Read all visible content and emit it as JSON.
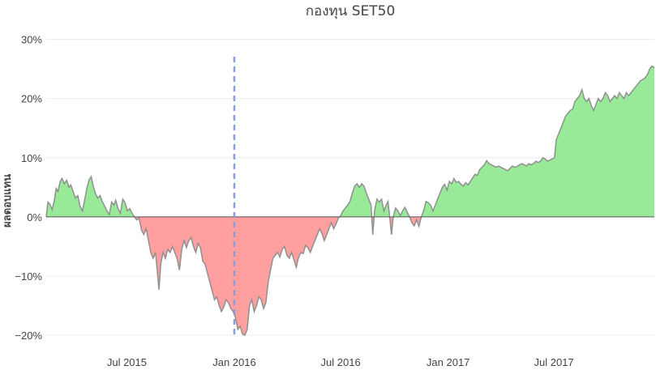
{
  "chart_data": {
    "type": "area",
    "title": "กองทุน SET50",
    "ylabel": "ผลตอบแทน",
    "xlabel": "",
    "x_range": [
      "2015-02-13",
      "2017-12-20"
    ],
    "ylim": [
      -0.215,
      0.305
    ],
    "y_ticks": [
      {
        "value": 0.3,
        "label": "30%"
      },
      {
        "value": 0.2,
        "label": "20%"
      },
      {
        "value": 0.1,
        "label": "10%"
      },
      {
        "value": 0.0,
        "label": "0%"
      },
      {
        "value": -0.1,
        "label": "−10%"
      },
      {
        "value": -0.2,
        "label": "−20%"
      }
    ],
    "x_ticks": [
      {
        "date": "2015-07-01",
        "label": "Jul 2015"
      },
      {
        "date": "2016-01-01",
        "label": "Jan 2016"
      },
      {
        "date": "2016-07-01",
        "label": "Jul 2016"
      },
      {
        "date": "2017-01-01",
        "label": "Jan 2017"
      },
      {
        "date": "2017-07-01",
        "label": "Jul 2017"
      }
    ],
    "marker_line": {
      "date": "2016-01-01",
      "color": "#8a9cd8"
    },
    "grid": true,
    "colors": {
      "positive": "#98ea98",
      "negative": "#ff9f9f",
      "line": "#909090",
      "zero": "#555555"
    },
    "series": [
      {
        "points": [
          [
            "2015-02-13",
            0.0
          ],
          [
            "2015-02-16",
            0.025
          ],
          [
            "2015-02-19",
            0.022
          ],
          [
            "2015-02-23",
            0.012
          ],
          [
            "2015-02-27",
            0.028
          ],
          [
            "2015-03-02",
            0.048
          ],
          [
            "2015-03-05",
            0.043
          ],
          [
            "2015-03-09",
            0.06
          ],
          [
            "2015-03-12",
            0.065
          ],
          [
            "2015-03-16",
            0.056
          ],
          [
            "2015-03-20",
            0.062
          ],
          [
            "2015-03-24",
            0.05
          ],
          [
            "2015-03-27",
            0.054
          ],
          [
            "2015-04-01",
            0.04
          ],
          [
            "2015-04-04",
            0.032
          ],
          [
            "2015-04-08",
            0.036
          ],
          [
            "2015-04-12",
            0.018
          ],
          [
            "2015-04-16",
            0.01
          ],
          [
            "2015-04-20",
            0.03
          ],
          [
            "2015-04-24",
            0.05
          ],
          [
            "2015-04-28",
            0.064
          ],
          [
            "2015-05-01",
            0.068
          ],
          [
            "2015-05-04",
            0.054
          ],
          [
            "2015-05-08",
            0.04
          ],
          [
            "2015-05-12",
            0.032
          ],
          [
            "2015-05-16",
            0.036
          ],
          [
            "2015-05-20",
            0.026
          ],
          [
            "2015-05-24",
            0.018
          ],
          [
            "2015-05-28",
            0.01
          ],
          [
            "2015-06-01",
            0.004
          ],
          [
            "2015-06-05",
            0.025
          ],
          [
            "2015-06-09",
            0.02
          ],
          [
            "2015-06-12",
            0.028
          ],
          [
            "2015-06-16",
            0.014
          ],
          [
            "2015-06-20",
            0.006
          ],
          [
            "2015-06-24",
            0.03
          ],
          [
            "2015-06-28",
            0.024
          ],
          [
            "2015-07-02",
            0.01
          ],
          [
            "2015-07-06",
            0.014
          ],
          [
            "2015-07-10",
            0.006
          ],
          [
            "2015-07-14",
            0.0
          ],
          [
            "2015-07-18",
            -0.005
          ],
          [
            "2015-07-22",
            -0.002
          ],
          [
            "2015-07-26",
            -0.022
          ],
          [
            "2015-07-30",
            -0.03
          ],
          [
            "2015-08-03",
            -0.02
          ],
          [
            "2015-08-07",
            -0.04
          ],
          [
            "2015-08-11",
            -0.06
          ],
          [
            "2015-08-15",
            -0.07
          ],
          [
            "2015-08-19",
            -0.06
          ],
          [
            "2015-08-22",
            -0.09
          ],
          [
            "2015-08-25",
            -0.123
          ],
          [
            "2015-08-28",
            -0.08
          ],
          [
            "2015-09-01",
            -0.06
          ],
          [
            "2015-09-05",
            -0.07
          ],
          [
            "2015-09-09",
            -0.055
          ],
          [
            "2015-09-13",
            -0.06
          ],
          [
            "2015-09-17",
            -0.05
          ],
          [
            "2015-09-21",
            -0.06
          ],
          [
            "2015-09-25",
            -0.07
          ],
          [
            "2015-09-29",
            -0.09
          ],
          [
            "2015-10-03",
            -0.055
          ],
          [
            "2015-10-07",
            -0.04
          ],
          [
            "2015-10-11",
            -0.052
          ],
          [
            "2015-10-15",
            -0.04
          ],
          [
            "2015-10-19",
            -0.035
          ],
          [
            "2015-10-23",
            -0.05
          ],
          [
            "2015-10-27",
            -0.06
          ],
          [
            "2015-10-31",
            -0.045
          ],
          [
            "2015-11-04",
            -0.052
          ],
          [
            "2015-11-08",
            -0.075
          ],
          [
            "2015-11-12",
            -0.08
          ],
          [
            "2015-11-16",
            -0.095
          ],
          [
            "2015-11-20",
            -0.11
          ],
          [
            "2015-11-24",
            -0.125
          ],
          [
            "2015-11-28",
            -0.14
          ],
          [
            "2015-12-02",
            -0.135
          ],
          [
            "2015-12-06",
            -0.15
          ],
          [
            "2015-12-10",
            -0.16
          ],
          [
            "2015-12-14",
            -0.152
          ],
          [
            "2015-12-18",
            -0.14
          ],
          [
            "2015-12-22",
            -0.145
          ],
          [
            "2015-12-26",
            -0.155
          ],
          [
            "2015-12-30",
            -0.16
          ],
          [
            "2016-01-03",
            -0.17
          ],
          [
            "2016-01-07",
            -0.19
          ],
          [
            "2016-01-11",
            -0.185
          ],
          [
            "2016-01-15",
            -0.198
          ],
          [
            "2016-01-19",
            -0.2
          ],
          [
            "2016-01-23",
            -0.19
          ],
          [
            "2016-01-27",
            -0.15
          ],
          [
            "2016-01-31",
            -0.14
          ],
          [
            "2016-02-04",
            -0.16
          ],
          [
            "2016-02-08",
            -0.15
          ],
          [
            "2016-02-12",
            -0.135
          ],
          [
            "2016-02-16",
            -0.14
          ],
          [
            "2016-02-20",
            -0.155
          ],
          [
            "2016-02-24",
            -0.145
          ],
          [
            "2016-02-28",
            -0.11
          ],
          [
            "2016-03-03",
            -0.09
          ],
          [
            "2016-03-07",
            -0.07
          ],
          [
            "2016-03-11",
            -0.065
          ],
          [
            "2016-03-15",
            -0.06
          ],
          [
            "2016-03-19",
            -0.068
          ],
          [
            "2016-03-23",
            -0.055
          ],
          [
            "2016-03-27",
            -0.05
          ],
          [
            "2016-03-31",
            -0.065
          ],
          [
            "2016-04-04",
            -0.07
          ],
          [
            "2016-04-08",
            -0.06
          ],
          [
            "2016-04-12",
            -0.072
          ],
          [
            "2016-04-16",
            -0.085
          ],
          [
            "2016-04-20",
            -0.068
          ],
          [
            "2016-04-24",
            -0.06
          ],
          [
            "2016-04-28",
            -0.062
          ],
          [
            "2016-05-02",
            -0.048
          ],
          [
            "2016-05-06",
            -0.052
          ],
          [
            "2016-05-10",
            -0.06
          ],
          [
            "2016-05-14",
            -0.05
          ],
          [
            "2016-05-18",
            -0.04
          ],
          [
            "2016-05-22",
            -0.03
          ],
          [
            "2016-05-26",
            -0.02
          ],
          [
            "2016-05-30",
            -0.028
          ],
          [
            "2016-06-03",
            -0.04
          ],
          [
            "2016-06-07",
            -0.03
          ],
          [
            "2016-06-11",
            -0.02
          ],
          [
            "2016-06-15",
            -0.01
          ],
          [
            "2016-06-19",
            -0.02
          ],
          [
            "2016-06-23",
            -0.012
          ],
          [
            "2016-06-27",
            -0.002
          ],
          [
            "2016-07-01",
            0.002
          ],
          [
            "2016-07-05",
            0.01
          ],
          [
            "2016-07-09",
            0.015
          ],
          [
            "2016-07-13",
            0.02
          ],
          [
            "2016-07-17",
            0.026
          ],
          [
            "2016-07-21",
            0.04
          ],
          [
            "2016-07-25",
            0.052
          ],
          [
            "2016-07-29",
            0.056
          ],
          [
            "2016-08-02",
            0.05
          ],
          [
            "2016-08-06",
            0.056
          ],
          [
            "2016-08-10",
            0.052
          ],
          [
            "2016-08-14",
            0.04
          ],
          [
            "2016-08-18",
            0.03
          ],
          [
            "2016-08-22",
            0.02
          ],
          [
            "2016-08-25",
            -0.03
          ],
          [
            "2016-08-28",
            0.01
          ],
          [
            "2016-09-01",
            0.03
          ],
          [
            "2016-09-05",
            0.025
          ],
          [
            "2016-09-09",
            0.03
          ],
          [
            "2016-09-13",
            0.01
          ],
          [
            "2016-09-17",
            0.02
          ],
          [
            "2016-09-20",
            0.026
          ],
          [
            "2016-09-23",
            0.0
          ],
          [
            "2016-09-26",
            -0.03
          ],
          [
            "2016-09-29",
            0.0
          ],
          [
            "2016-10-03",
            0.015
          ],
          [
            "2016-10-07",
            0.01
          ],
          [
            "2016-10-11",
            0.002
          ],
          [
            "2016-10-15",
            0.01
          ],
          [
            "2016-10-19",
            0.016
          ],
          [
            "2016-10-23",
            0.008
          ],
          [
            "2016-10-27",
            0.0
          ],
          [
            "2016-10-31",
            -0.01
          ],
          [
            "2016-11-04",
            -0.015
          ],
          [
            "2016-11-08",
            -0.005
          ],
          [
            "2016-11-12",
            -0.016
          ],
          [
            "2016-11-16",
            0.0
          ],
          [
            "2016-11-20",
            0.01
          ],
          [
            "2016-11-24",
            0.026
          ],
          [
            "2016-11-28",
            0.024
          ],
          [
            "2016-12-02",
            0.02
          ],
          [
            "2016-12-06",
            0.01
          ],
          [
            "2016-12-10",
            0.02
          ],
          [
            "2016-12-14",
            0.03
          ],
          [
            "2016-12-18",
            0.04
          ],
          [
            "2016-12-22",
            0.05
          ],
          [
            "2016-12-26",
            0.055
          ],
          [
            "2016-12-30",
            0.045
          ],
          [
            "2017-01-03",
            0.06
          ],
          [
            "2017-01-07",
            0.056
          ],
          [
            "2017-01-11",
            0.065
          ],
          [
            "2017-01-15",
            0.058
          ],
          [
            "2017-01-19",
            0.06
          ],
          [
            "2017-01-23",
            0.055
          ],
          [
            "2017-01-27",
            0.052
          ],
          [
            "2017-01-31",
            0.058
          ],
          [
            "2017-02-04",
            0.054
          ],
          [
            "2017-02-08",
            0.06
          ],
          [
            "2017-02-12",
            0.066
          ],
          [
            "2017-02-16",
            0.072
          ],
          [
            "2017-02-20",
            0.07
          ],
          [
            "2017-02-24",
            0.08
          ],
          [
            "2017-02-28",
            0.084
          ],
          [
            "2017-03-04",
            0.088
          ],
          [
            "2017-03-08",
            0.095
          ],
          [
            "2017-03-12",
            0.09
          ],
          [
            "2017-03-16",
            0.088
          ],
          [
            "2017-03-20",
            0.086
          ],
          [
            "2017-03-24",
            0.084
          ],
          [
            "2017-03-28",
            0.086
          ],
          [
            "2017-04-01",
            0.084
          ],
          [
            "2017-04-05",
            0.082
          ],
          [
            "2017-04-09",
            0.08
          ],
          [
            "2017-04-13",
            0.078
          ],
          [
            "2017-04-17",
            0.082
          ],
          [
            "2017-04-21",
            0.086
          ],
          [
            "2017-04-25",
            0.084
          ],
          [
            "2017-04-29",
            0.085
          ],
          [
            "2017-05-03",
            0.088
          ],
          [
            "2017-05-07",
            0.09
          ],
          [
            "2017-05-11",
            0.088
          ],
          [
            "2017-05-15",
            0.086
          ],
          [
            "2017-05-19",
            0.09
          ],
          [
            "2017-05-23",
            0.088
          ],
          [
            "2017-05-27",
            0.09
          ],
          [
            "2017-05-31",
            0.094
          ],
          [
            "2017-06-04",
            0.092
          ],
          [
            "2017-06-08",
            0.094
          ],
          [
            "2017-06-12",
            0.1
          ],
          [
            "2017-06-16",
            0.098
          ],
          [
            "2017-06-20",
            0.094
          ],
          [
            "2017-06-24",
            0.096
          ],
          [
            "2017-06-28",
            0.098
          ],
          [
            "2017-07-02",
            0.1
          ],
          [
            "2017-07-05",
            0.13
          ],
          [
            "2017-07-09",
            0.14
          ],
          [
            "2017-07-13",
            0.15
          ],
          [
            "2017-07-17",
            0.16
          ],
          [
            "2017-07-21",
            0.17
          ],
          [
            "2017-07-25",
            0.175
          ],
          [
            "2017-07-29",
            0.18
          ],
          [
            "2017-08-02",
            0.182
          ],
          [
            "2017-08-06",
            0.195
          ],
          [
            "2017-08-10",
            0.2
          ],
          [
            "2017-08-14",
            0.205
          ],
          [
            "2017-08-18",
            0.215
          ],
          [
            "2017-08-22",
            0.2
          ],
          [
            "2017-08-26",
            0.195
          ],
          [
            "2017-08-30",
            0.2
          ],
          [
            "2017-09-03",
            0.188
          ],
          [
            "2017-09-07",
            0.18
          ],
          [
            "2017-09-11",
            0.19
          ],
          [
            "2017-09-15",
            0.2
          ],
          [
            "2017-09-19",
            0.195
          ],
          [
            "2017-09-23",
            0.2
          ],
          [
            "2017-09-27",
            0.21
          ],
          [
            "2017-10-01",
            0.205
          ],
          [
            "2017-10-05",
            0.195
          ],
          [
            "2017-10-09",
            0.2
          ],
          [
            "2017-10-13",
            0.205
          ],
          [
            "2017-10-17",
            0.2
          ],
          [
            "2017-10-21",
            0.21
          ],
          [
            "2017-10-25",
            0.205
          ],
          [
            "2017-10-29",
            0.2
          ],
          [
            "2017-11-02",
            0.21
          ],
          [
            "2017-11-06",
            0.205
          ],
          [
            "2017-11-10",
            0.21
          ],
          [
            "2017-11-14",
            0.215
          ],
          [
            "2017-11-18",
            0.22
          ],
          [
            "2017-11-22",
            0.225
          ],
          [
            "2017-11-26",
            0.23
          ],
          [
            "2017-11-30",
            0.232
          ],
          [
            "2017-12-04",
            0.235
          ],
          [
            "2017-12-08",
            0.24
          ],
          [
            "2017-12-12",
            0.25
          ],
          [
            "2017-12-16",
            0.255
          ],
          [
            "2017-12-20",
            0.252
          ]
        ]
      }
    ]
  }
}
